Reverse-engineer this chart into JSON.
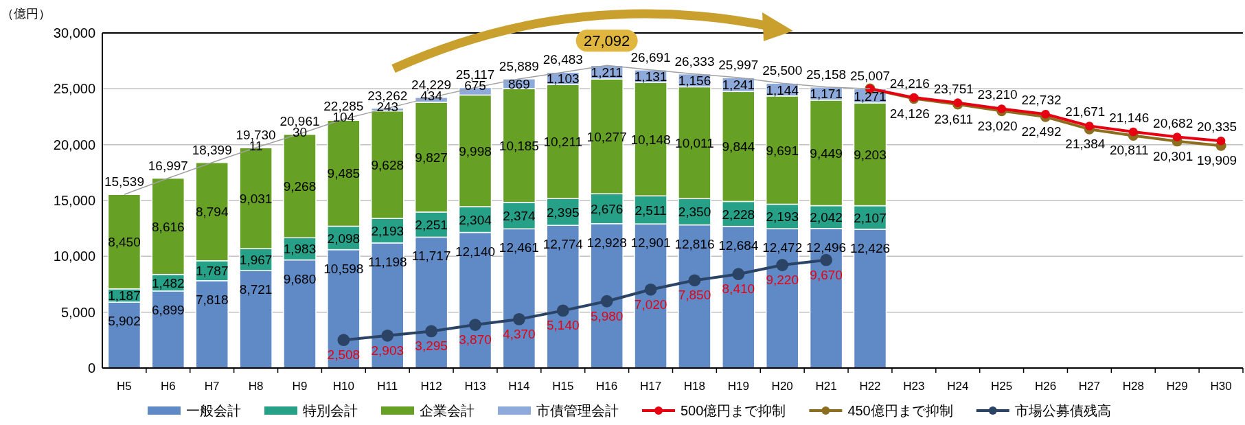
{
  "chart_data": {
    "type": "bar",
    "stacked": true,
    "ylabel": "（億円）",
    "categories": [
      "H5",
      "H6",
      "H7",
      "H8",
      "H9",
      "H10",
      "H11",
      "H12",
      "H13",
      "H14",
      "H15",
      "H16",
      "H17",
      "H18",
      "H19",
      "H20",
      "H21",
      "H22",
      "H23",
      "H24",
      "H25",
      "H26",
      "H27",
      "H28",
      "H29",
      "H30"
    ],
    "series": [
      {
        "name": "一般会計",
        "color": "#5f8ac6",
        "values": [
          5902,
          6899,
          7818,
          8721,
          9680,
          10598,
          11198,
          11717,
          12140,
          12461,
          12774,
          12928,
          12901,
          12816,
          12684,
          12472,
          12496,
          12426,
          null,
          null,
          null,
          null,
          null,
          null,
          null,
          null
        ],
        "value_labels": [
          "5,902",
          "6,899",
          "7,818",
          "8,721",
          "9,680",
          "10,598",
          "11,198",
          "11,717",
          "12,140",
          "12,461",
          "12,774",
          "12,928",
          "12,901",
          "12,816",
          "12,684",
          "12,472",
          "12,496",
          "12,426",
          null,
          null,
          null,
          null,
          null,
          null,
          null,
          null
        ]
      },
      {
        "name": "特別会計",
        "color": "#26a087",
        "values": [
          1187,
          1482,
          1787,
          1967,
          1983,
          2098,
          2193,
          2251,
          2304,
          2374,
          2395,
          2676,
          2511,
          2350,
          2228,
          2193,
          2042,
          2107,
          null,
          null,
          null,
          null,
          null,
          null,
          null,
          null
        ],
        "value_labels": [
          "1,187",
          "1,482",
          "1,787",
          "1,967",
          "1,983",
          "2,098",
          "2,193",
          "2,251",
          "2,304",
          "2,374",
          "2,395",
          "2,676",
          "2,511",
          "2,350",
          "2,228",
          "2,193",
          "2,042",
          "2,107",
          null,
          null,
          null,
          null,
          null,
          null,
          null,
          null
        ]
      },
      {
        "name": "企業会計",
        "color": "#66a024",
        "values": [
          8450,
          8616,
          8794,
          9031,
          9268,
          9485,
          9628,
          9827,
          9998,
          10185,
          10211,
          10277,
          10148,
          10011,
          9844,
          9691,
          9449,
          9203,
          null,
          null,
          null,
          null,
          null,
          null,
          null,
          null
        ],
        "value_labels": [
          "8,450",
          "8,616",
          "8,794",
          "9,031",
          "9,268",
          "9,485",
          "9,628",
          "9,827",
          "9,998",
          "10,185",
          "10,211",
          "10,277",
          "10,148",
          "10,011",
          "9,844",
          "9,691",
          "9,449",
          "9,203",
          null,
          null,
          null,
          null,
          null,
          null,
          null,
          null
        ]
      },
      {
        "name": "市債管理会計",
        "color": "#8eaadb",
        "values": [
          null,
          null,
          null,
          11,
          30,
          104,
          243,
          434,
          675,
          869,
          1103,
          1211,
          1131,
          1156,
          1241,
          1144,
          1171,
          1271,
          null,
          null,
          null,
          null,
          null,
          null,
          null,
          null
        ],
        "value_labels": [
          null,
          null,
          null,
          "11",
          "30",
          "104",
          "243",
          "434",
          "675",
          "869",
          "1,103",
          "1,211",
          "1,131",
          "1,156",
          "1,241",
          "1,144",
          "1,171",
          "1,271",
          null,
          null,
          null,
          null,
          null,
          null,
          null,
          null
        ]
      },
      {
        "type": "line",
        "color": "#a0a0a0",
        "marker": "none",
        "values": [
          15539,
          16997,
          18399,
          19730,
          20961,
          22285,
          23262,
          24229,
          25117,
          25889,
          26483,
          27092,
          26691,
          26333,
          25997,
          25500,
          25158,
          25007,
          null,
          null,
          null,
          null,
          null,
          null,
          null,
          null
        ]
      },
      {
        "type": "line",
        "name": "500億円まで抑制",
        "color": "#e60012",
        "values": [
          null,
          null,
          null,
          null,
          null,
          null,
          null,
          null,
          null,
          null,
          null,
          null,
          null,
          null,
          null,
          null,
          null,
          25007,
          24216,
          23751,
          23210,
          22732,
          21671,
          21146,
          20682,
          20335
        ],
        "value_labels": [
          null,
          null,
          null,
          null,
          null,
          null,
          null,
          null,
          null,
          null,
          null,
          null,
          null,
          null,
          null,
          null,
          null,
          null,
          "24,216",
          "23,751",
          "23,210",
          "22,732",
          "21,671",
          "21,146",
          "20,682",
          "20,335"
        ]
      },
      {
        "type": "line",
        "name": "450億円まで抑制",
        "color": "#8d6e1f",
        "values": [
          null,
          null,
          null,
          null,
          null,
          null,
          null,
          null,
          null,
          null,
          null,
          null,
          null,
          null,
          null,
          null,
          null,
          25007,
          24126,
          23611,
          23020,
          22492,
          21384,
          20811,
          20301,
          19909
        ],
        "value_labels": [
          null,
          null,
          null,
          null,
          null,
          null,
          null,
          null,
          null,
          null,
          null,
          null,
          null,
          null,
          null,
          null,
          null,
          null,
          "24,126",
          "23,611",
          "23,020",
          "22,492",
          "21,384",
          "20,811",
          "20,301",
          "19,909"
        ]
      },
      {
        "type": "line",
        "name": "市場公募債残高",
        "color": "#2b4466",
        "values": [
          null,
          null,
          null,
          null,
          null,
          2508,
          2903,
          3295,
          3870,
          4370,
          5140,
          5980,
          7020,
          7850,
          8410,
          9220,
          9670,
          null,
          null,
          null,
          null,
          null,
          null,
          null,
          null,
          null
        ],
        "value_labels": [
          null,
          null,
          null,
          null,
          null,
          "2,508",
          "2,903",
          "3,295",
          "3,870",
          "4,370",
          "5,140",
          "5,980",
          "7,020",
          "7,850",
          "8,410",
          "9,220",
          "9,670",
          null,
          null,
          null,
          null,
          null,
          null,
          null,
          null,
          null
        ]
      }
    ],
    "totals": [
      "15,539",
      "16,997",
      "18,399",
      "19,730",
      "20,961",
      "22,285",
      "23,262",
      "24,229",
      "25,117",
      "25,889",
      "26,483",
      "27,092",
      "26,691",
      "26,333",
      "25,997",
      "25,500",
      "25,158",
      "25,007",
      null,
      null,
      null,
      null,
      null,
      null,
      null,
      null
    ],
    "marker": "circle",
    "line_style": "solid",
    "grid": "y",
    "legend": "bottom",
    "ylim": [
      0,
      30000
    ],
    "yticks": [
      {
        "value": 0,
        "label": "0"
      },
      {
        "value": 5000,
        "label": "5,000"
      },
      {
        "value": 10000,
        "label": "10,000"
      },
      {
        "value": 15000,
        "label": "15,000"
      },
      {
        "value": 20000,
        "label": "20,000"
      },
      {
        "value": 25000,
        "label": "25,000"
      },
      {
        "value": 30000,
        "label": "30,000"
      }
    ]
  }
}
